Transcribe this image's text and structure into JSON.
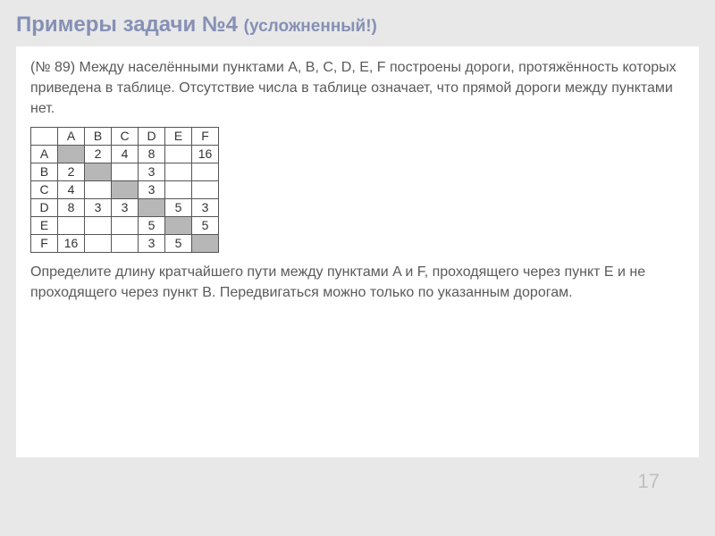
{
  "title_main": "Примеры задачи №4 ",
  "title_sub": "(усложненный!)",
  "problem_intro": "(№ 89) Между населёнными пунктами A, B, C, D, E, F построены дороги, протяжённость которых приведена в таблице. Отсутствие числа в таблице означает, что прямой дороги между пунктами нет.",
  "question": "Определите длину кратчайшего пути между пунктами A и F, проходящего через пункт E и не проходящего через пункт B. Передвигаться можно только по указанным дорогам.",
  "page_number": "17",
  "table": {
    "headers": [
      "",
      "A",
      "B",
      "C",
      "D",
      "E",
      "F"
    ],
    "rows": [
      {
        "label": "A",
        "cells": [
          {
            "v": "",
            "shaded": true
          },
          {
            "v": "2",
            "shaded": false
          },
          {
            "v": "4",
            "shaded": false
          },
          {
            "v": "8",
            "shaded": false
          },
          {
            "v": "",
            "shaded": false
          },
          {
            "v": "16",
            "shaded": false
          }
        ]
      },
      {
        "label": "B",
        "cells": [
          {
            "v": "2",
            "shaded": false
          },
          {
            "v": "",
            "shaded": true
          },
          {
            "v": "",
            "shaded": false
          },
          {
            "v": "3",
            "shaded": false
          },
          {
            "v": "",
            "shaded": false
          },
          {
            "v": "",
            "shaded": false
          }
        ]
      },
      {
        "label": "C",
        "cells": [
          {
            "v": "4",
            "shaded": false
          },
          {
            "v": "",
            "shaded": false
          },
          {
            "v": "",
            "shaded": true
          },
          {
            "v": "3",
            "shaded": false
          },
          {
            "v": "",
            "shaded": false
          },
          {
            "v": "",
            "shaded": false
          }
        ]
      },
      {
        "label": "D",
        "cells": [
          {
            "v": "8",
            "shaded": false
          },
          {
            "v": "3",
            "shaded": false
          },
          {
            "v": "3",
            "shaded": false
          },
          {
            "v": "",
            "shaded": true
          },
          {
            "v": "5",
            "shaded": false
          },
          {
            "v": "3",
            "shaded": false
          }
        ]
      },
      {
        "label": "E",
        "cells": [
          {
            "v": "",
            "shaded": false
          },
          {
            "v": "",
            "shaded": false
          },
          {
            "v": "",
            "shaded": false
          },
          {
            "v": "5",
            "shaded": false
          },
          {
            "v": "",
            "shaded": true
          },
          {
            "v": "5",
            "shaded": false
          }
        ]
      },
      {
        "label": "F",
        "cells": [
          {
            "v": "16",
            "shaded": false
          },
          {
            "v": "",
            "shaded": false
          },
          {
            "v": "",
            "shaded": false
          },
          {
            "v": "3",
            "shaded": false
          },
          {
            "v": "5",
            "shaded": false
          },
          {
            "v": "",
            "shaded": true
          }
        ]
      }
    ]
  },
  "colors": {
    "background": "#e8e8e8",
    "content_bg": "#ffffff",
    "title_color": "#8690b5",
    "text_color": "#5a5a5a",
    "border_color": "#555555",
    "shaded_cell": "#b7b7b7",
    "page_num_color": "#bfbfbf"
  }
}
